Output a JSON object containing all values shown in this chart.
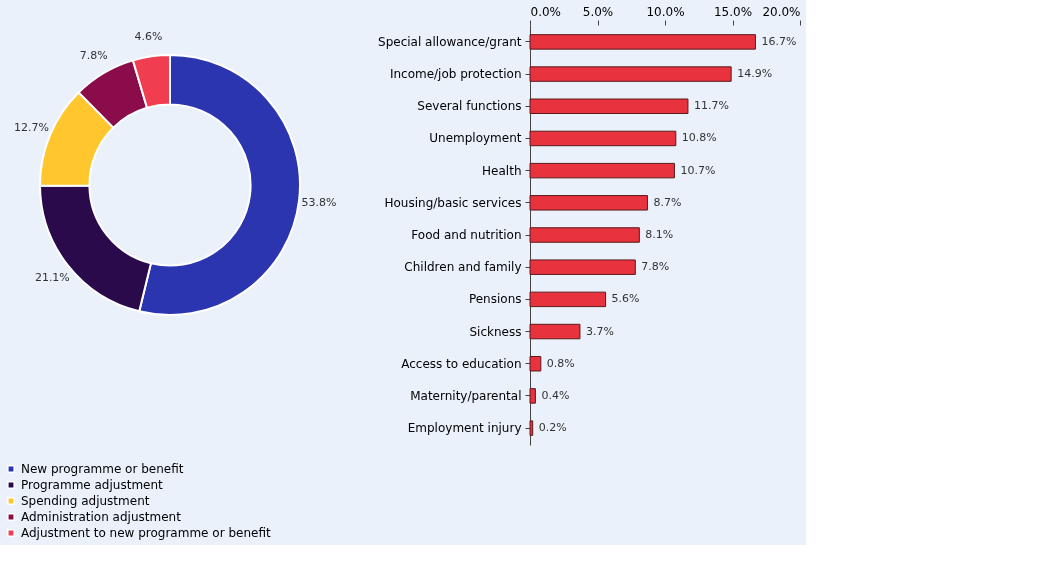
{
  "chart_data": [
    {
      "type": "donut",
      "categories": [
        "New programme or benefit",
        "Programme adjustment",
        "Spending adjustment",
        "Administration adjustment",
        "Adjustment to new programme or benefit"
      ],
      "values": [
        53.8,
        21.1,
        12.7,
        7.8,
        4.6
      ],
      "colors": [
        "#2b35b0",
        "#2a0a4a",
        "#ffc62e",
        "#8b0c4a",
        "#f03e50"
      ],
      "value_labels": [
        "53.8%",
        "21.1%",
        "12.7%",
        "7.8%",
        "4.6%"
      ],
      "legend": "bottom"
    },
    {
      "type": "bar",
      "orientation": "horizontal",
      "categories": [
        "Special allowance/grant",
        "Income/job protection",
        "Several functions",
        "Unemployment",
        "Health",
        "Housing/basic services",
        "Food and nutrition",
        "Children and family",
        "Pensions",
        "Sickness",
        "Access to education",
        "Maternity/parental",
        "Employment injury"
      ],
      "values": [
        16.7,
        14.9,
        11.7,
        10.8,
        10.7,
        8.7,
        8.1,
        7.8,
        5.6,
        3.7,
        0.8,
        0.4,
        0.2
      ],
      "color": "#e8323e",
      "value_labels": [
        "16.7%",
        "14.9%",
        "11.7%",
        "10.8%",
        "10.7%",
        "8.7%",
        "8.1%",
        "7.8%",
        "5.6%",
        "3.7%",
        "0.8%",
        "0.4%",
        "0.2%"
      ],
      "xlim": [
        0,
        20
      ],
      "xticks": [
        {
          "value": 0,
          "label": "0.0%"
        },
        {
          "value": 5,
          "label": "5.0%"
        },
        {
          "value": 10,
          "label": "10.0%"
        },
        {
          "value": 15,
          "label": "15.0%"
        },
        {
          "value": 20,
          "label": "20.0%"
        }
      ],
      "grid": false
    }
  ]
}
